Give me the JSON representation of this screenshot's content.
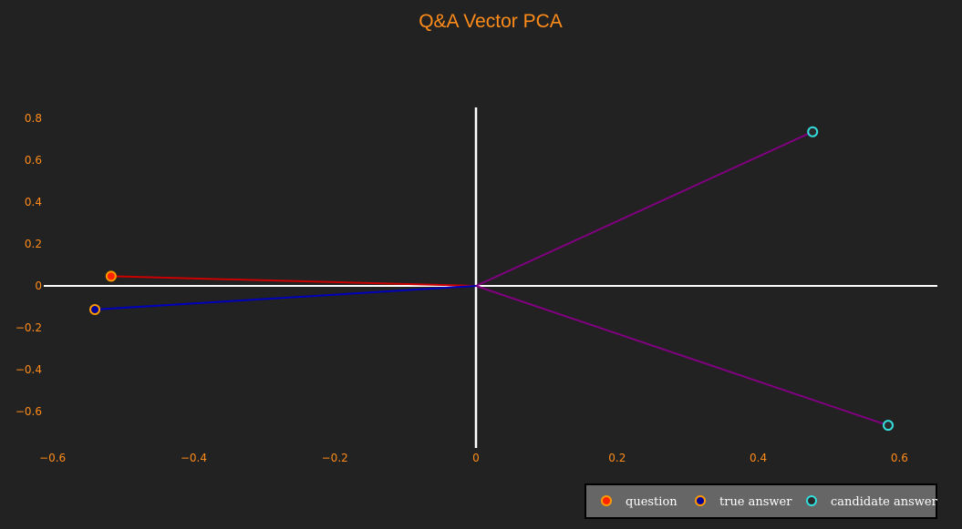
{
  "colors": {
    "background": "#222222",
    "text": "#ff8c1a",
    "axis": "#ffffff",
    "legend_bg": "#666666",
    "legend_border": "#000000",
    "legend_text": "#ffffff"
  },
  "chart_data": {
    "type": "scatter",
    "title": "Q&A Vector PCA",
    "xlabel": "",
    "ylabel": "",
    "xlim": [
      -0.6,
      0.65
    ],
    "ylim": [
      -0.75,
      0.85
    ],
    "x_ticks": [
      -0.6,
      -0.4,
      -0.2,
      0,
      0.2,
      0.4,
      0.6
    ],
    "x_tick_labels": [
      "−0.6",
      "−0.4",
      "−0.2",
      "0",
      "0.2",
      "0.4",
      "0.6"
    ],
    "y_ticks": [
      0.8,
      0.6,
      0.4,
      0.2,
      0,
      -0.2,
      -0.4,
      -0.6
    ],
    "y_tick_labels": [
      "0.8",
      "0.6",
      "0.4",
      "0.2",
      "0",
      "−0.2",
      "−0.4",
      "−0.6"
    ],
    "grid": false,
    "zero_lines": true,
    "legend_position": "bottom-right",
    "series": [
      {
        "name": "question",
        "line_color": "#cc0000",
        "marker_fill": "#ff2200",
        "marker_edge": "#ff9900",
        "points": [
          {
            "x": -0.517,
            "y": 0.046
          }
        ]
      },
      {
        "name": "true answer",
        "line_color": "#0000bb",
        "marker_fill": "#000099",
        "marker_edge": "#ff9900",
        "points": [
          {
            "x": -0.54,
            "y": -0.113
          }
        ]
      },
      {
        "name": "candidate answer",
        "line_color": "#800080",
        "marker_fill": "#2a2a2a",
        "marker_edge": "#33dddd",
        "points": [
          {
            "x": 0.477,
            "y": 0.736
          },
          {
            "x": 0.584,
            "y": -0.666
          }
        ]
      }
    ]
  }
}
